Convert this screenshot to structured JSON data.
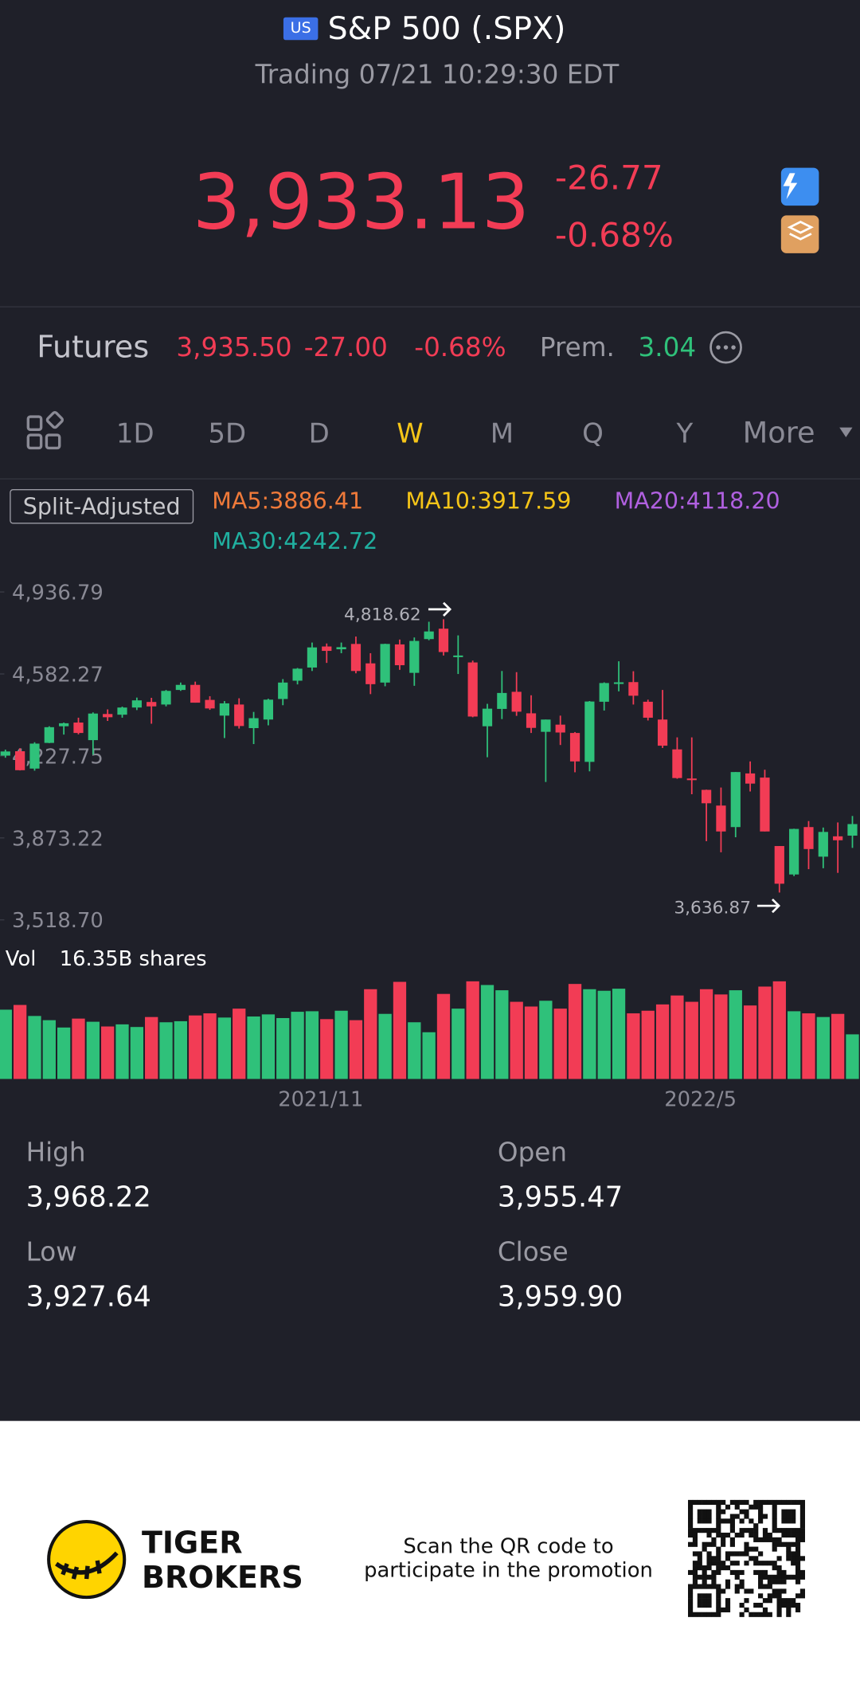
{
  "header": {
    "badge": "US",
    "title": "S&P 500 (.SPX)",
    "status": "Trading 07/21 10:29:30 EDT"
  },
  "quote": {
    "price": "3,933.13",
    "change": "-26.77",
    "change_pct": "-0.68%"
  },
  "futures": {
    "label": "Futures",
    "price": "3,935.50",
    "change": "-27.00",
    "change_pct": "-0.68%",
    "premium_label": "Prem.",
    "premium": "3.04"
  },
  "tabs": [
    "1D",
    "5D",
    "D",
    "W",
    "M",
    "Q",
    "Y",
    "More"
  ],
  "active_tab": 3,
  "chart": {
    "type": "candlestick",
    "adjust_label": "Split-Adjusted",
    "ma_labels": [
      "MA5:3886.41",
      "MA10:3917.59",
      "MA20:4118.20",
      "MA30:4242.72"
    ],
    "categories": [
      null,
      null,
      null,
      null,
      null,
      null,
      null,
      null,
      null,
      null,
      null,
      null,
      null,
      null,
      null,
      null,
      null,
      null,
      null,
      null,
      null,
      "2021/11",
      null,
      null,
      null,
      null,
      null,
      null,
      null,
      null,
      null,
      null,
      null,
      null,
      null,
      null,
      null,
      null,
      null,
      null,
      null,
      null,
      null,
      null,
      null,
      null,
      null,
      "2022/5",
      null,
      null,
      null,
      null,
      null,
      null,
      null,
      null,
      null,
      null,
      null
    ],
    "open": [
      4229,
      4248,
      4173,
      4284,
      4356,
      4372,
      4296,
      4409,
      4406,
      4437,
      4461,
      4450,
      4513,
      4535,
      4470,
      4402,
      4450,
      4348,
      4385,
      4474,
      4553,
      4610,
      4701,
      4689,
      4712,
      4628,
      4545,
      4710,
      4587,
      4733,
      4778,
      4655,
      4632,
      4356,
      4431,
      4505,
      4412,
      4332,
      4363,
      4327,
      4202,
      4462,
      4541,
      4547,
      4462,
      4385,
      4256,
      4130,
      4081,
      4013,
      3920,
      4152,
      4134,
      3838,
      3715,
      3920,
      3792,
      3880,
      3883
    ],
    "high": [
      4255,
      4261,
      4287,
      4356,
      4372,
      4393,
      4416,
      4429,
      4441,
      4480,
      4479,
      4513,
      4545,
      4549,
      4486,
      4465,
      4477,
      4418,
      4475,
      4560,
      4608,
      4718,
      4714,
      4718,
      4744,
      4672,
      4713,
      4731,
      4740,
      4808,
      4818.62,
      4749,
      4640,
      4453,
      4595,
      4590,
      4490,
      4385,
      4402,
      4331,
      4465,
      4546,
      4637,
      4594,
      4471,
      4513,
      4308,
      4308,
      4082,
      4091,
      4158,
      4204,
      4168,
      3838,
      3913,
      3946,
      3918,
      3940,
      3968
    ],
    "low": [
      4220,
      4165,
      4164,
      4283,
      4320,
      4321,
      4233,
      4379,
      4393,
      4426,
      4367,
      4442,
      4509,
      4458,
      4427,
      4305,
      4346,
      4279,
      4360,
      4447,
      4537,
      4595,
      4630,
      4672,
      4585,
      4495,
      4529,
      4600,
      4531,
      4728,
      4662,
      4582,
      4395,
      4222,
      4387,
      4401,
      4327,
      4115,
      4275,
      4157,
      4161,
      4424,
      4507,
      4450,
      4381,
      4262,
      4129,
      4062,
      3859,
      3811,
      3876,
      4074,
      3901,
      3636.87,
      3708,
      3738,
      3742,
      3722,
      3830
    ],
    "close": [
      4247,
      4166,
      4281,
      4352,
      4369,
      4327,
      4411,
      4395,
      4437,
      4468,
      4442,
      4509,
      4535,
      4458,
      4433,
      4455,
      4357,
      4391,
      4471,
      4545,
      4605,
      4697,
      4682,
      4698,
      4595,
      4538,
      4712,
      4620,
      4725,
      4766,
      4677,
      4662,
      4398,
      4432,
      4500,
      4419,
      4349,
      4385,
      4329,
      4204,
      4463,
      4543,
      4546,
      4488,
      4393,
      4272,
      4132,
      4123,
      4023,
      3901,
      4158,
      4108,
      3901,
      3675,
      3912,
      3825,
      3899,
      3863,
      3933
    ],
    "ylim": [
      3518.7,
      4936.79
    ],
    "yticks": [
      {
        "value": 4936.79,
        "label": "4,936.79"
      },
      {
        "value": 4582.27,
        "label": "4,582.27"
      },
      {
        "value": 4227.75,
        "label": "4,227.75"
      },
      {
        "value": 3873.22,
        "label": "3,873.22"
      },
      {
        "value": 3518.7,
        "label": "3,518.70"
      }
    ],
    "annotations": [
      "4,818.62",
      "3,636.87"
    ],
    "up_color": "#2fc17a",
    "down_color": "#f23c55",
    "volume": {
      "label": "Vol",
      "value_label": "16.35B shares",
      "ylim": [
        0,
        20
      ],
      "values": [
        13.2,
        14.1,
        12.0,
        11.2,
        9.8,
        11.5,
        10.9,
        10.0,
        10.4,
        9.9,
        11.8,
        10.8,
        11.0,
        12.1,
        12.5,
        11.7,
        13.4,
        11.9,
        12.3,
        11.6,
        12.8,
        12.9,
        11.4,
        13.0,
        11.2,
        17.1,
        12.4,
        18.5,
        10.8,
        8.9,
        16.2,
        13.4,
        18.6,
        17.9,
        16.9,
        14.7,
        13.8,
        14.9,
        13.4,
        18.1,
        17.1,
        16.8,
        17.2,
        12.5,
        13.0,
        14.2,
        15.9,
        14.7,
        17.1,
        16.1,
        16.9,
        14.0,
        17.6,
        18.6,
        12.9,
        12.5,
        11.8,
        12.4,
        8.5
      ]
    }
  },
  "stats": [
    {
      "label": "High",
      "value": "3,968.22"
    },
    {
      "label": "Open",
      "value": "3,955.47"
    },
    {
      "label": "Low",
      "value": "3,927.64"
    },
    {
      "label": "Close",
      "value": "3,959.90"
    }
  ],
  "footer": {
    "brand": [
      "TIGER",
      "BROKERS"
    ],
    "promo": [
      "Scan the QR code to",
      "participate in the promotion"
    ]
  }
}
